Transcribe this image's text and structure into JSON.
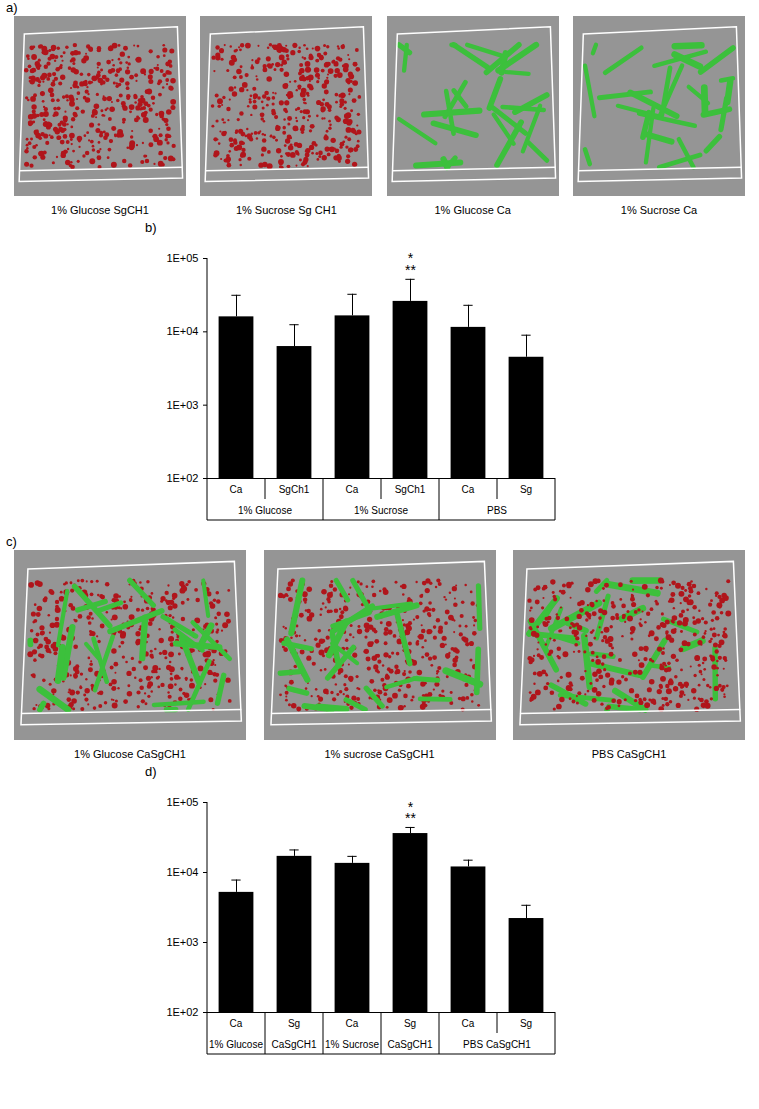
{
  "figure": {
    "panels": [
      {
        "label": "a)",
        "images": [
          {
            "caption": "1% Glucose SgCH1",
            "colors": [
              "#b0151b"
            ]
          },
          {
            "caption": "1% Sucrose Sg CH1",
            "colors": [
              "#b0151b"
            ]
          },
          {
            "caption": "1% Glucose Ca",
            "colors": [
              "#3cc03c"
            ]
          },
          {
            "caption": "1% Sucrose Ca",
            "colors": [
              "#3cc03c"
            ]
          }
        ]
      },
      {
        "label": "c)",
        "images": [
          {
            "caption": "1% Glucose CaSgCH1",
            "colors": [
              "#b0151b",
              "#3cc03c"
            ]
          },
          {
            "caption": "1% sucrose CaSgCH1",
            "colors": [
              "#b0151b",
              "#3cc03c"
            ]
          },
          {
            "caption": "PBS CaSgCH1",
            "colors": [
              "#3cc03c",
              "#b0151b"
            ]
          }
        ]
      }
    ]
  },
  "chart_data": [
    {
      "type": "bar",
      "title": "b)",
      "categories": [
        "Ca",
        "SgCh1",
        "Ca",
        "SgCh1",
        "Ca",
        "Sg"
      ],
      "groups": [
        "1% Glucose",
        "1% Glucose",
        "1% Sucrose",
        "1% Sucrose",
        "PBS",
        "PBS"
      ],
      "values": [
        16000,
        6300,
        16500,
        26000,
        11500,
        4500
      ],
      "errors": [
        15500,
        6200,
        16000,
        26000,
        11500,
        4500
      ],
      "color": "#000000",
      "log": "y",
      "ylim": [
        100,
        100000
      ],
      "yticks": [
        {
          "value": 100,
          "label": "1E+02"
        },
        {
          "value": 1000,
          "label": "1E+03"
        },
        {
          "value": 10000,
          "label": "1E+04"
        },
        {
          "value": 100000,
          "label": "1E+05"
        }
      ],
      "annotations": [
        {
          "index": 3,
          "text": [
            "*",
            "**"
          ]
        }
      ]
    },
    {
      "type": "bar",
      "title": "d)",
      "categories": [
        "Ca",
        "Sg",
        "Ca",
        "Sg",
        "Ca",
        "Sg"
      ],
      "groups": [
        "1% Glucose",
        "CaSgCH1",
        "1% Sucrose",
        "CaSgCH1",
        "PBS CaSgCH1",
        "PBS CaSgCH1"
      ],
      "values": [
        5200,
        17000,
        13500,
        36000,
        12000,
        2200
      ],
      "errors": [
        2600,
        4000,
        3500,
        8000,
        3000,
        1200
      ],
      "color": "#000000",
      "log": "y",
      "ylim": [
        100,
        100000
      ],
      "yticks": [
        {
          "value": 100,
          "label": "1E+02"
        },
        {
          "value": 1000,
          "label": "1E+03"
        },
        {
          "value": 10000,
          "label": "1E+04"
        },
        {
          "value": 100000,
          "label": "1E+05"
        }
      ],
      "annotations": [
        {
          "index": 3,
          "text": [
            "*",
            "**"
          ]
        }
      ]
    }
  ]
}
